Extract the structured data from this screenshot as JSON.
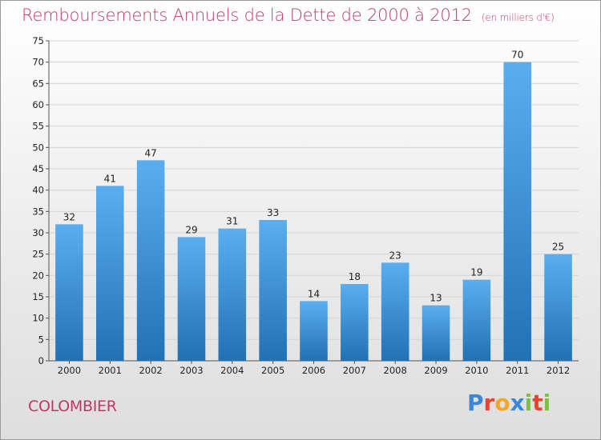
{
  "header": {
    "title": "Remboursements Annuels de la Dette de 2000 à 2012",
    "subtitle": "(en milliers d'€)"
  },
  "footer": {
    "city": "COLOMBIER",
    "logo": "Proxiti"
  },
  "colors": {
    "title": "#c03868",
    "bar_light": "#5aaef0",
    "bar_dark": "#2171b5",
    "logo_letters": [
      "#3a86d8",
      "#e8432f",
      "#f5a623",
      "#3a86d8",
      "#7cc242",
      "#e8432f",
      "#7cc242"
    ]
  },
  "chart_data": {
    "type": "bar",
    "categories": [
      "2000",
      "2001",
      "2002",
      "2003",
      "2004",
      "2005",
      "2006",
      "2007",
      "2008",
      "2009",
      "2010",
      "2011",
      "2012"
    ],
    "values": [
      32,
      41,
      47,
      29,
      31,
      33,
      14,
      18,
      23,
      13,
      19,
      70,
      25
    ],
    "title": "Remboursements Annuels de la Dette de 2000 à 2012",
    "xlabel": "",
    "ylabel": "",
    "ylim": [
      0,
      75
    ],
    "yticks": [
      0,
      5,
      10,
      15,
      20,
      25,
      30,
      35,
      40,
      45,
      50,
      55,
      60,
      65,
      70,
      75
    ],
    "grid": true,
    "data_labels": true
  }
}
